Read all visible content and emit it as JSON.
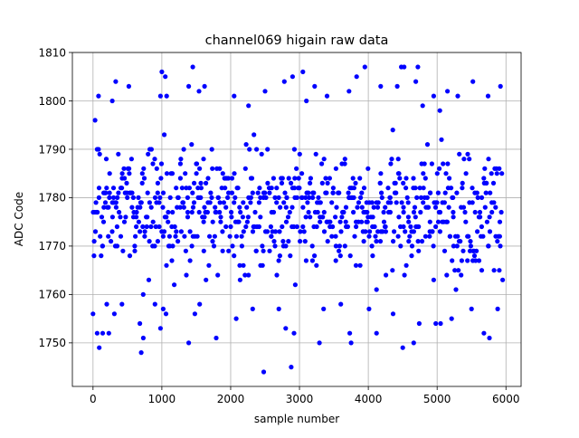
{
  "chart_data": {
    "type": "scatter",
    "title": "channel069 higain raw data",
    "xlabel": "sample number",
    "ylabel": "ADC Code",
    "xlim": [
      -300,
      6220
    ],
    "ylim": [
      1741,
      1810
    ],
    "xticks": [
      0,
      1000,
      2000,
      3000,
      4000,
      5000,
      6000
    ],
    "yticks": [
      1750,
      1760,
      1770,
      1780,
      1790,
      1800,
      1810
    ],
    "x_tick_labels": [
      "0",
      "1000",
      "2000",
      "3000",
      "4000",
      "5000",
      "6000"
    ],
    "y_tick_labels": [
      "1750",
      "1760",
      "1770",
      "1780",
      "1790",
      "1800",
      "1810"
    ],
    "grid": true,
    "marker": "circle",
    "point_color": "#0000ff",
    "x_range_of_samples": [
      0,
      5950
    ],
    "series": [
      {
        "points": [
          [
            1000,
            1806
          ],
          [
            1050,
            1805
          ],
          [
            1450,
            1807
          ],
          [
            2900,
            1805
          ],
          [
            3050,
            1806
          ],
          [
            3950,
            1807
          ],
          [
            4480,
            1807
          ],
          [
            4520,
            1807
          ],
          [
            4720,
            1807
          ],
          [
            4690,
            1804
          ],
          [
            30,
            1796
          ],
          [
            80,
            1801
          ],
          [
            280,
            1800
          ],
          [
            330,
            1804
          ],
          [
            520,
            1803
          ],
          [
            980,
            1801
          ],
          [
            1070,
            1801
          ],
          [
            1390,
            1803
          ],
          [
            1540,
            1802
          ],
          [
            1620,
            1803
          ],
          [
            2050,
            1801
          ],
          [
            2500,
            1802
          ],
          [
            2780,
            1804
          ],
          [
            3220,
            1803
          ],
          [
            3400,
            1801
          ],
          [
            3720,
            1802
          ],
          [
            3830,
            1805
          ],
          [
            4180,
            1803
          ],
          [
            4420,
            1803
          ],
          [
            4950,
            1801
          ],
          [
            5150,
            1802
          ],
          [
            5300,
            1801
          ],
          [
            5520,
            1804
          ],
          [
            5740,
            1801
          ],
          [
            5920,
            1803
          ],
          [
            2260,
            1799
          ],
          [
            3100,
            1800
          ],
          [
            4790,
            1799
          ],
          [
            5040,
            1798
          ],
          [
            0,
            1756
          ],
          [
            60,
            1752
          ],
          [
            90,
            1749
          ],
          [
            140,
            1752
          ],
          [
            200,
            1758
          ],
          [
            230,
            1752
          ],
          [
            310,
            1756
          ],
          [
            420,
            1758
          ],
          [
            680,
            1754
          ],
          [
            700,
            1748
          ],
          [
            730,
            1751
          ],
          [
            900,
            1758
          ],
          [
            980,
            1753
          ],
          [
            1020,
            1757
          ],
          [
            1060,
            1756
          ],
          [
            1390,
            1750
          ],
          [
            1480,
            1756
          ],
          [
            1550,
            1758
          ],
          [
            1790,
            1751
          ],
          [
            2080,
            1755
          ],
          [
            2320,
            1757
          ],
          [
            2480,
            1744
          ],
          [
            2700,
            1757
          ],
          [
            2800,
            1753
          ],
          [
            2920,
            1752
          ],
          [
            2880,
            1745
          ],
          [
            3290,
            1750
          ],
          [
            3350,
            1757
          ],
          [
            3600,
            1758
          ],
          [
            3730,
            1752
          ],
          [
            3750,
            1750
          ],
          [
            4010,
            1757
          ],
          [
            4120,
            1752
          ],
          [
            4360,
            1756
          ],
          [
            4500,
            1749
          ],
          [
            4660,
            1750
          ],
          [
            4740,
            1754
          ],
          [
            4980,
            1754
          ],
          [
            5050,
            1754
          ],
          [
            5210,
            1755
          ],
          [
            5500,
            1757
          ],
          [
            5680,
            1752
          ],
          [
            5760,
            1751
          ],
          [
            5880,
            1757
          ]
        ]
      }
    ],
    "dense_band": {
      "sample_x_start": 0,
      "sample_x_end": 5950,
      "sample_step": 24,
      "mean": 1777.5,
      "typical_range": [
        1758,
        1797
      ]
    }
  }
}
